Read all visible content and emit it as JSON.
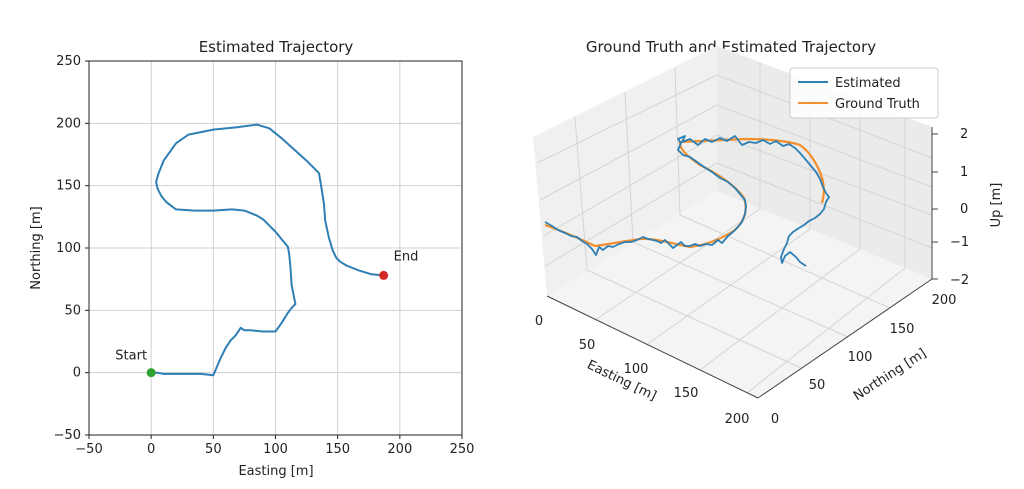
{
  "chart_data": [
    {
      "type": "line",
      "title": "Estimated Trajectory",
      "xlabel": "Easting [m]",
      "ylabel": "Northing [m]",
      "xlim": [
        -50,
        250
      ],
      "ylim": [
        -50,
        250
      ],
      "xticks": [
        "−50",
        "0",
        "50",
        "100",
        "150",
        "200",
        "250"
      ],
      "yticks": [
        "−50",
        "0",
        "50",
        "100",
        "150",
        "200",
        "250"
      ],
      "grid": true,
      "series": [
        {
          "color": "#2e7fb4",
          "x": [
            0,
            5,
            10,
            20,
            30,
            40,
            50,
            53,
            56,
            60,
            64,
            68,
            72,
            75,
            80,
            90,
            100,
            105,
            110,
            113,
            116,
            113,
            112,
            111,
            110,
            105,
            100,
            95,
            90,
            85,
            80,
            75,
            65,
            50,
            35,
            20,
            12,
            8,
            5,
            4,
            6,
            10,
            20,
            30,
            50,
            70,
            85,
            95,
            105,
            115,
            125,
            135,
            137,
            139,
            140,
            143,
            146,
            149,
            152,
            157,
            167,
            177,
            187
          ],
          "y": [
            0,
            0,
            -1,
            -1,
            -1,
            -1,
            -2,
            5,
            12,
            20,
            26,
            30,
            36,
            34,
            34,
            33,
            33,
            40,
            48,
            52,
            55,
            70,
            85,
            95,
            101,
            107,
            113,
            118,
            123,
            126,
            128,
            130,
            131,
            130,
            130,
            131,
            137,
            142,
            148,
            153,
            160,
            170,
            184,
            191,
            195,
            197,
            199,
            196,
            188,
            179,
            170,
            160,
            148,
            135,
            122,
            108,
            98,
            92,
            89,
            86,
            82,
            79,
            78
          ]
        }
      ],
      "points": [
        {
          "label": "Start",
          "x": 0,
          "y": 0,
          "color": "#2ca02c"
        },
        {
          "label": "End",
          "x": 187,
          "y": 78,
          "color": "#d62728"
        }
      ]
    },
    {
      "type": "line",
      "projection": "3d",
      "title": "Ground Truth and Estimated Trajectory",
      "xlabel": "Easting [m]",
      "ylabel": "Northing [m]",
      "zlabel": "Up [m]",
      "xticks": [
        "0",
        "50",
        "100",
        "150",
        "200"
      ],
      "yticks": [
        "0",
        "50",
        "100",
        "150",
        "200"
      ],
      "zticks": [
        "2",
        "1",
        "0",
        "−1",
        "−2"
      ],
      "zlim": [
        -2,
        2
      ],
      "grid": true,
      "legend": "top-right",
      "series": [
        {
          "name": "Estimated",
          "color": "#2e7fb4"
        },
        {
          "name": "Ground Truth",
          "color": "#f28e2b"
        }
      ]
    }
  ]
}
